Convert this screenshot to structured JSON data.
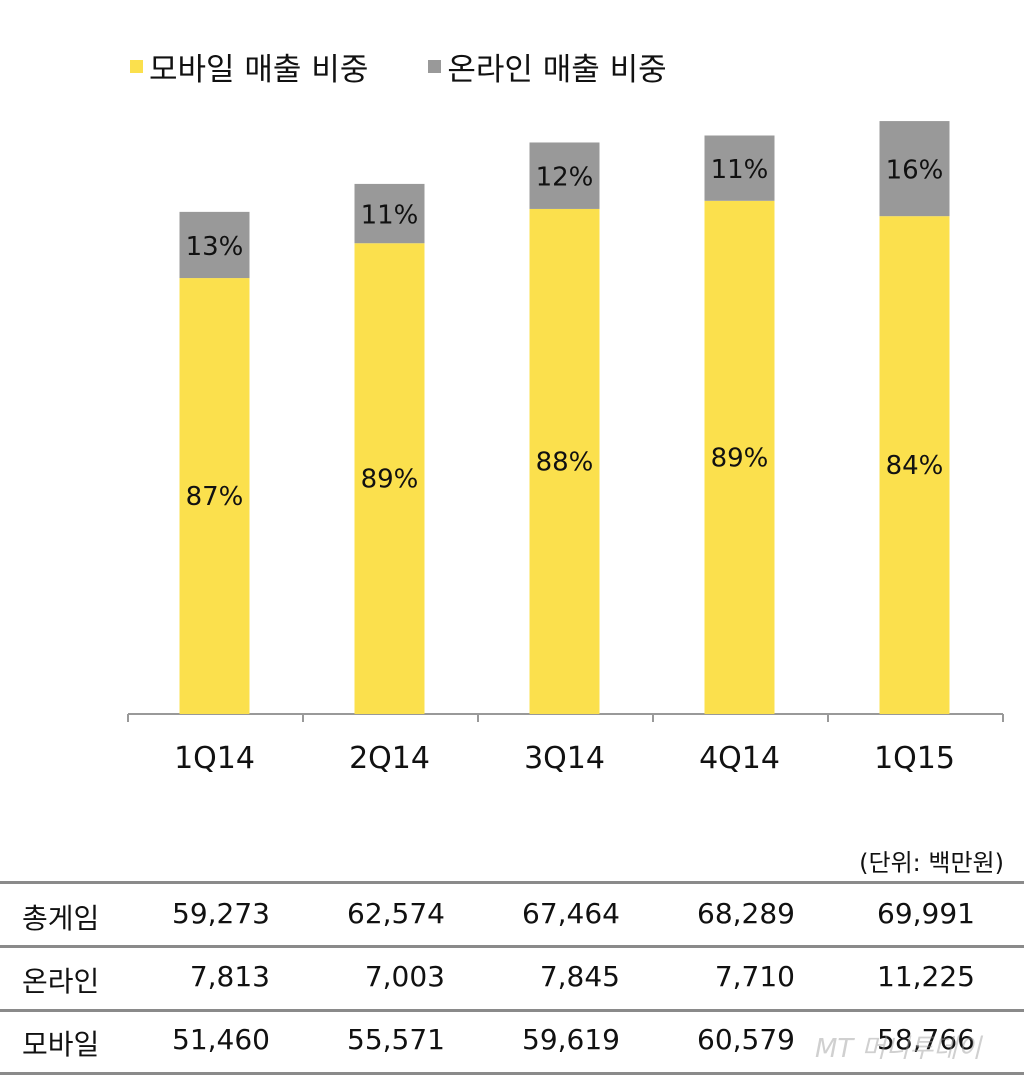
{
  "chart_data": {
    "type": "bar",
    "stacked": true,
    "categories": [
      "1Q14",
      "2Q14",
      "3Q14",
      "4Q14",
      "1Q15"
    ],
    "series": [
      {
        "name": "모바일 매출 비중",
        "color": "#FBE04D",
        "percent_labels": [
          "87%",
          "89%",
          "88%",
          "89%",
          "84%"
        ],
        "values": [
          51460,
          55571,
          59619,
          60579,
          58766
        ]
      },
      {
        "name": "온라인 매출 비중",
        "color": "#999999",
        "percent_labels": [
          "13%",
          "11%",
          "12%",
          "11%",
          "16%"
        ],
        "values": [
          7813,
          7003,
          7845,
          7710,
          11225
        ]
      }
    ],
    "totals": [
      59273,
      62574,
      67464,
      68289,
      69991
    ],
    "legend_position": "top",
    "grid": false
  },
  "table": {
    "unit": "(단위: 백만원)",
    "rows": [
      {
        "label": "총게임",
        "values": [
          "59,273",
          "62,574",
          "67,464",
          "68,289",
          "69,991"
        ]
      },
      {
        "label": "온라인",
        "values": [
          "7,813",
          "7,003",
          "7,845",
          "7,710",
          "11,225"
        ]
      },
      {
        "label": "모바일",
        "values": [
          "51,460",
          "55,571",
          "59,619",
          "60,579",
          "58,766"
        ]
      }
    ]
  },
  "watermark": "MT 머니투데이"
}
